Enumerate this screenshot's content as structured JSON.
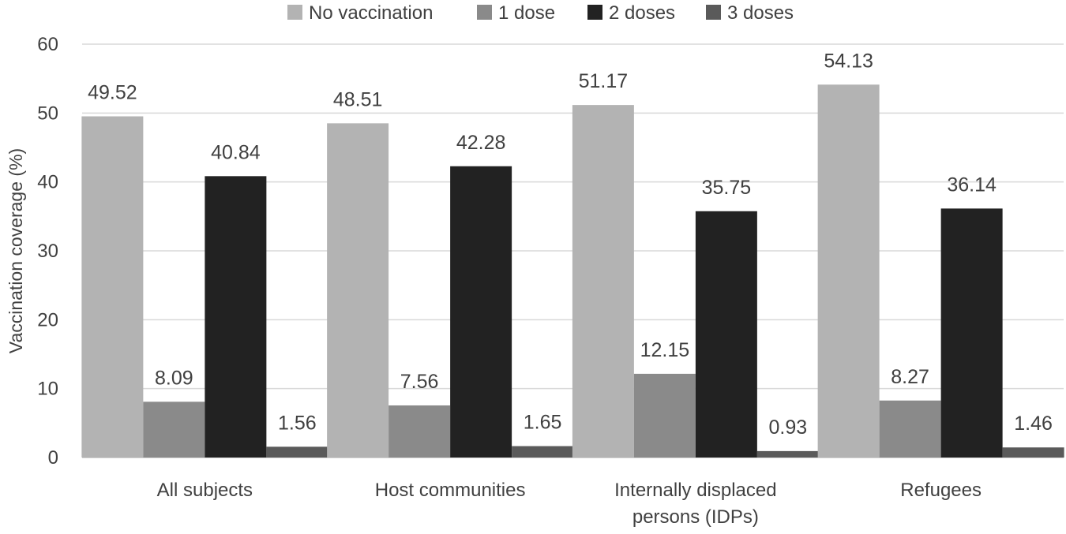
{
  "chart_data": {
    "type": "bar",
    "categories": [
      [
        "All subjects"
      ],
      [
        "Host communities"
      ],
      [
        "Internally displaced",
        "persons (IDPs)"
      ],
      [
        "Refugees"
      ]
    ],
    "series": [
      {
        "name": "No vaccination",
        "color": "#b3b3b3",
        "values": [
          49.52,
          48.51,
          51.17,
          54.13
        ]
      },
      {
        "name": "1 dose",
        "color": "#8a8a8a",
        "values": [
          8.09,
          7.56,
          12.15,
          8.27
        ]
      },
      {
        "name": "2 doses",
        "color": "#222222",
        "values": [
          40.84,
          42.28,
          35.75,
          36.14
        ]
      },
      {
        "name": "3 doses",
        "color": "#5a5a5a",
        "values": [
          1.56,
          1.65,
          0.93,
          1.46
        ]
      }
    ],
    "ylabel": "Vaccination coverage (%)",
    "ylim": [
      0,
      60
    ],
    "yticks": [
      0,
      10,
      20,
      30,
      40,
      50,
      60
    ],
    "grid": true,
    "legend_position": "top"
  }
}
